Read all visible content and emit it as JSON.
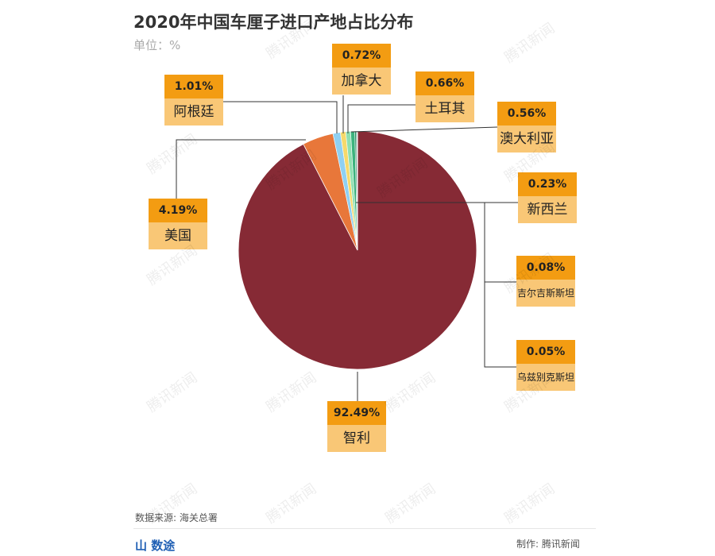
{
  "title": "2020年中国车厘子进口产地占比分布",
  "unit": "单位：%",
  "source": "数据来源: 海关总署",
  "brand": "山 数途",
  "credit": "制作: 腾讯新闻",
  "watermark": "腾讯新闻",
  "chart_data": {
    "type": "pie",
    "title": "2020年中国车厘子进口产地占比分布",
    "unit": "%",
    "start": "12 o'clock, clockwise",
    "slices": [
      {
        "name": "智利",
        "value": 92.49,
        "label": "92.49%",
        "color": "#862a35"
      },
      {
        "name": "美国",
        "value": 4.19,
        "label": "4.19%",
        "color": "#e8773a"
      },
      {
        "name": "阿根廷",
        "value": 1.01,
        "label": "1.01%",
        "color": "#8fd0f2"
      },
      {
        "name": "加拿大",
        "value": 0.72,
        "label": "0.72%",
        "color": "#f6d96b"
      },
      {
        "name": "土耳其",
        "value": 0.66,
        "label": "0.66%",
        "color": "#8fe0b0"
      },
      {
        "name": "澳大利亚",
        "value": 0.56,
        "label": "0.56%",
        "color": "#3cb27d"
      },
      {
        "name": "新西兰",
        "value": 0.23,
        "label": "0.23%",
        "color": "#2a8f66"
      },
      {
        "name": "吉尔吉斯斯坦",
        "value": 0.08,
        "label": "0.08%",
        "color": "#1d6e50"
      },
      {
        "name": "乌兹别克斯坦",
        "value": 0.05,
        "label": "0.05%",
        "color": "#145a40"
      }
    ]
  }
}
